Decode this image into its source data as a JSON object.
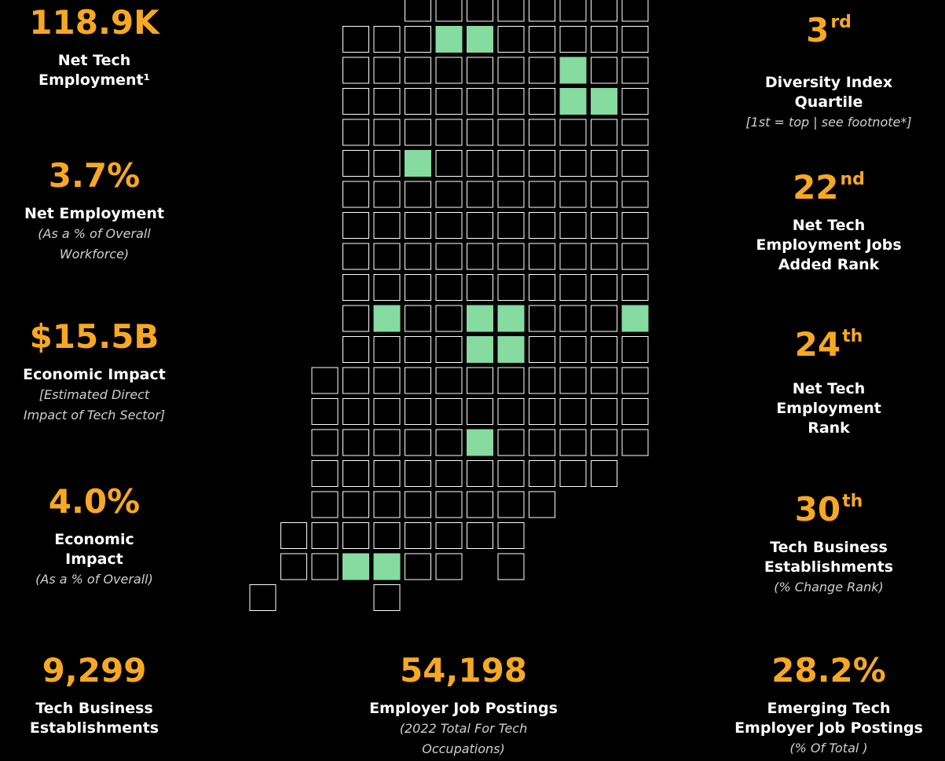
{
  "stats": [
    {
      "value": "118.9K",
      "label": [
        "Net Tech",
        "Employment¹"
      ]
    },
    {
      "value": "3.7%",
      "label": [
        "Net Employment"
      ],
      "note": [
        "(As a % of Overall",
        "Workforce)"
      ]
    },
    {
      "value": "$15.5B",
      "label": [
        "Economic Impact"
      ],
      "note": [
        "[Estimated Direct",
        "Impact of Tech Sector]"
      ]
    },
    {
      "value": "4.0%",
      "label": [
        "Economic",
        "Impact"
      ],
      "note": [
        "(As a % of Overall)"
      ]
    },
    {
      "value": "9,299",
      "label": [
        "Tech Business",
        "Establishments"
      ]
    },
    {
      "value": "3",
      "suffix": "rd",
      "label": [
        "Diversity Index",
        "Quartile"
      ],
      "note": [
        "[1st = top | see footnote*]"
      ]
    },
    {
      "value": "22",
      "suffix": "nd",
      "label": [
        "Net Tech",
        "Employment Jobs",
        "Added Rank"
      ]
    },
    {
      "value": "24",
      "suffix": "th",
      "label": [
        "Net Tech",
        "Employment",
        "Rank"
      ]
    },
    {
      "value": "30",
      "suffix": "th",
      "label": [
        "Tech Business",
        "Establishments"
      ],
      "note": [
        "(% Change Rank)"
      ]
    },
    {
      "value": "28.2%",
      "label": [
        "Emerging Tech",
        "Employer Job Postings"
      ],
      "note": [
        "(% Of Total )"
      ]
    },
    {
      "value": "54,198",
      "label": [
        "Employer Job Postings"
      ],
      "note": [
        "(2022 Total For Tech",
        "Occupations)"
      ]
    }
  ]
}
